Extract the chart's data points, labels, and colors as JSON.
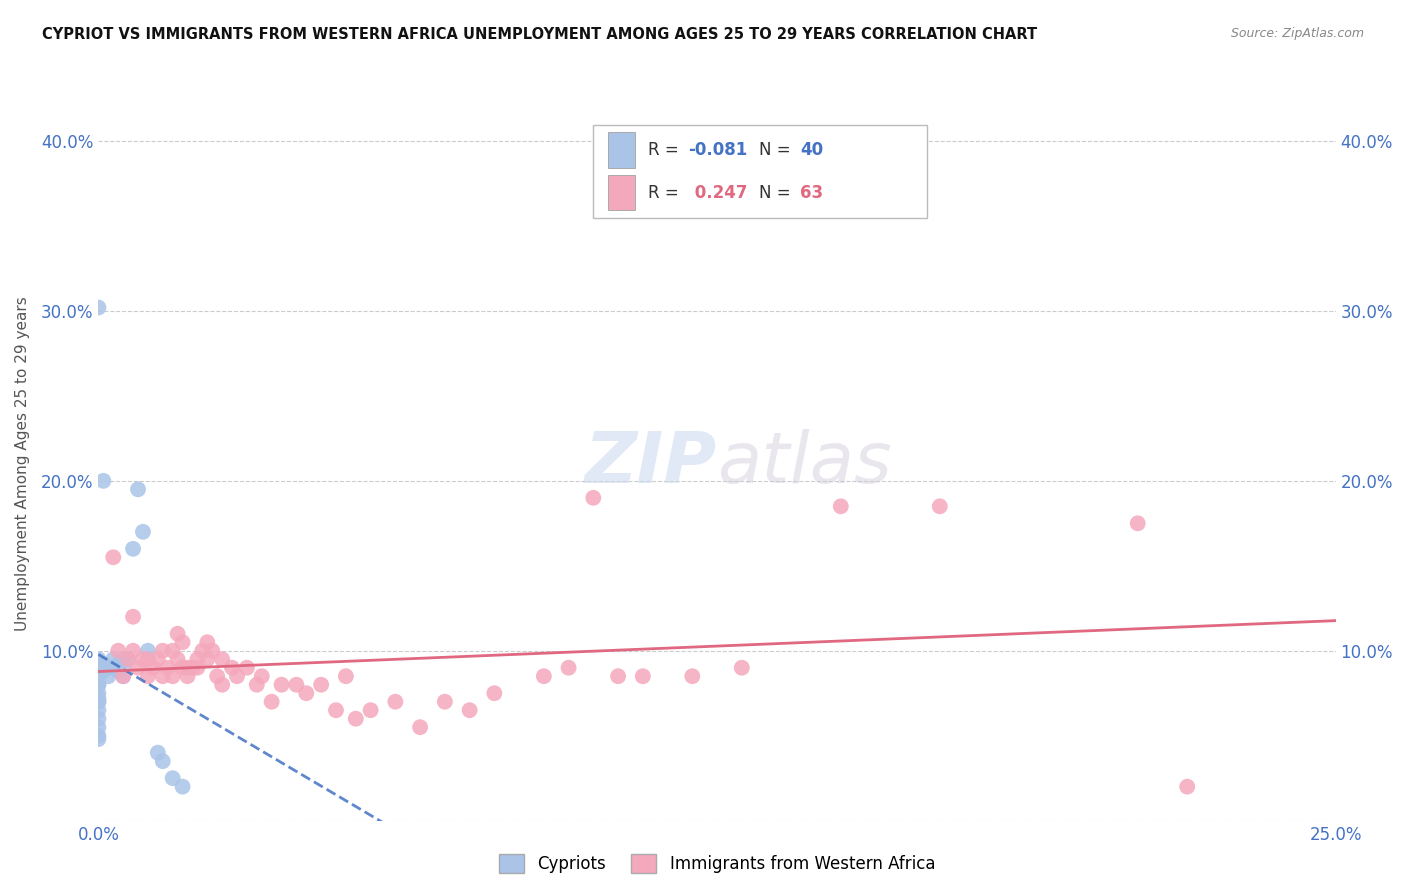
{
  "title": "CYPRIOT VS IMMIGRANTS FROM WESTERN AFRICA UNEMPLOYMENT AMONG AGES 25 TO 29 YEARS CORRELATION CHART",
  "source": "Source: ZipAtlas.com",
  "ylabel": "Unemployment Among Ages 25 to 29 years",
  "xlim": [
    0.0,
    0.25
  ],
  "ylim": [
    0.0,
    0.42
  ],
  "xtick_positions": [
    0.0,
    0.05,
    0.1,
    0.15,
    0.2,
    0.25
  ],
  "xtick_labels": [
    "0.0%",
    "",
    "",
    "",
    "",
    "25.0%"
  ],
  "ytick_positions": [
    0.0,
    0.1,
    0.2,
    0.3,
    0.4
  ],
  "ytick_labels": [
    "",
    "10.0%",
    "20.0%",
    "30.0%",
    "40.0%"
  ],
  "cypriot_color": "#aac4e8",
  "immigrant_color": "#f4a8bc",
  "cypriot_line_color": "#4472c4",
  "immigrant_line_color": "#e06880",
  "cypriot_R": -0.081,
  "cypriot_N": 40,
  "immigrant_R": 0.247,
  "immigrant_N": 63,
  "cypriot_x": [
    0.0,
    0.0,
    0.0,
    0.0,
    0.0,
    0.0,
    0.0,
    0.0,
    0.0,
    0.0,
    0.0,
    0.0,
    0.0,
    0.0,
    0.0,
    0.0,
    0.0,
    0.0,
    0.001,
    0.001,
    0.002,
    0.002,
    0.003,
    0.003,
    0.004,
    0.004,
    0.005,
    0.005,
    0.005,
    0.006,
    0.007,
    0.008,
    0.009,
    0.01,
    0.012,
    0.013,
    0.015,
    0.017,
    0.0,
    0.001
  ],
  "cypriot_y": [
    0.07,
    0.075,
    0.08,
    0.085,
    0.09,
    0.09,
    0.092,
    0.095,
    0.06,
    0.055,
    0.05,
    0.048,
    0.065,
    0.07,
    0.072,
    0.08,
    0.085,
    0.09,
    0.088,
    0.092,
    0.09,
    0.085,
    0.09,
    0.095,
    0.088,
    0.092,
    0.085,
    0.09,
    0.095,
    0.095,
    0.16,
    0.195,
    0.17,
    0.1,
    0.04,
    0.035,
    0.025,
    0.02,
    0.302,
    0.2
  ],
  "immigrant_x": [
    0.003,
    0.004,
    0.005,
    0.006,
    0.007,
    0.007,
    0.008,
    0.009,
    0.01,
    0.01,
    0.011,
    0.012,
    0.013,
    0.013,
    0.014,
    0.015,
    0.015,
    0.016,
    0.016,
    0.017,
    0.017,
    0.018,
    0.018,
    0.019,
    0.02,
    0.02,
    0.021,
    0.022,
    0.022,
    0.023,
    0.024,
    0.025,
    0.025,
    0.027,
    0.028,
    0.03,
    0.032,
    0.033,
    0.035,
    0.037,
    0.04,
    0.042,
    0.045,
    0.048,
    0.05,
    0.052,
    0.055,
    0.06,
    0.065,
    0.07,
    0.075,
    0.08,
    0.09,
    0.095,
    0.1,
    0.105,
    0.11,
    0.12,
    0.13,
    0.15,
    0.17,
    0.21,
    0.22
  ],
  "immigrant_y": [
    0.155,
    0.1,
    0.085,
    0.095,
    0.12,
    0.1,
    0.09,
    0.095,
    0.095,
    0.085,
    0.09,
    0.095,
    0.1,
    0.085,
    0.09,
    0.1,
    0.085,
    0.11,
    0.095,
    0.09,
    0.105,
    0.09,
    0.085,
    0.09,
    0.09,
    0.095,
    0.1,
    0.095,
    0.105,
    0.1,
    0.085,
    0.095,
    0.08,
    0.09,
    0.085,
    0.09,
    0.08,
    0.085,
    0.07,
    0.08,
    0.08,
    0.075,
    0.08,
    0.065,
    0.085,
    0.06,
    0.065,
    0.07,
    0.055,
    0.07,
    0.065,
    0.075,
    0.085,
    0.09,
    0.19,
    0.085,
    0.085,
    0.085,
    0.09,
    0.185,
    0.185,
    0.175,
    0.02
  ]
}
